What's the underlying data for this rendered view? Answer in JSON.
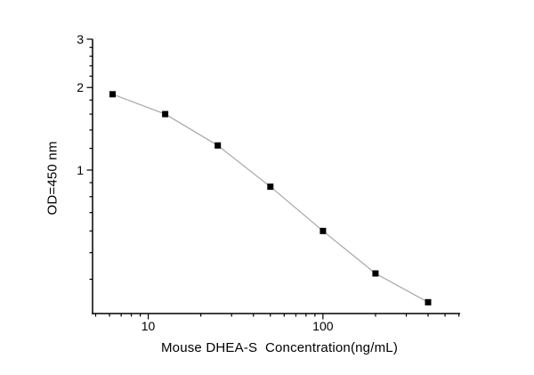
{
  "figure": {
    "background": "#ffffff"
  },
  "chart_data": {
    "type": "line",
    "title": "",
    "xlabel": "Mouse DHEA-S  Concentration(ng/mL)",
    "ylabel": "OD=450 nm",
    "x_scale": "log",
    "y_scale": "log",
    "x": [
      6.25,
      12.5,
      25,
      50,
      100,
      200,
      400
    ],
    "y": [
      1.89,
      1.6,
      1.23,
      0.87,
      0.6,
      0.42,
      0.33
    ],
    "x_major_ticks": [
      10,
      100
    ],
    "x_major_tick_labels": [
      "10",
      "100"
    ],
    "x_minor_ticks": [
      5,
      6,
      7,
      8,
      9,
      20,
      30,
      40,
      50,
      60,
      70,
      80,
      90,
      200,
      300,
      400,
      500,
      600
    ],
    "y_major_ticks": [
      1,
      2,
      3
    ],
    "y_major_tick_labels": [
      "1",
      "2",
      "3"
    ],
    "y_minor_ticks": [
      0.4,
      0.5,
      0.6,
      0.7,
      0.8,
      0.9,
      1.2,
      1.4,
      1.6,
      1.8,
      2.2,
      2.4,
      2.6,
      2.8
    ],
    "xlim": [
      4.8,
      610
    ],
    "ylim": [
      0.3,
      3.0
    ],
    "grid": "off",
    "legend": "none",
    "frame": "left-bottom-only",
    "marker": "filled-square",
    "marker_color": "#000000",
    "line_color": "#a8a8a8",
    "axis_color": "#000000",
    "tick_direction": "out"
  }
}
